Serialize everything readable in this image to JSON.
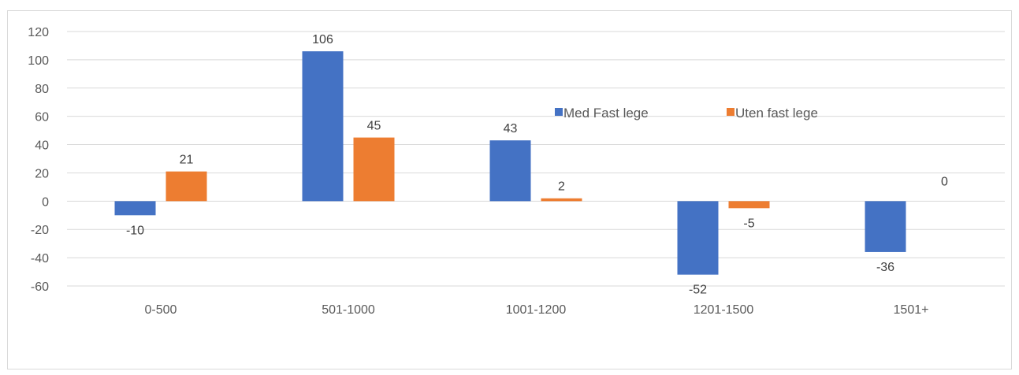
{
  "figure_caption": "",
  "colors": {
    "series_1": "#4472c4",
    "series_2": "#ed7d31",
    "grid": "#d9d9d9",
    "axis_text": "#595959"
  },
  "chart_data": {
    "type": "bar",
    "title": "",
    "xlabel": "",
    "ylabel": "",
    "categories": [
      "0-500",
      "501-1000",
      "1001-1200",
      "1201-1500",
      "1501+"
    ],
    "series": [
      {
        "name": "Med Fast lege",
        "values": [
          -10,
          106,
          43,
          -52,
          -36
        ]
      },
      {
        "name": "Uten fast lege",
        "values": [
          21,
          45,
          2,
          -5,
          0
        ]
      }
    ],
    "ylim": [
      -60,
      120
    ],
    "yticks": [
      120,
      100,
      80,
      60,
      40,
      20,
      0,
      -20,
      -40,
      -60
    ],
    "grid": true,
    "legend_position": "top-right"
  }
}
